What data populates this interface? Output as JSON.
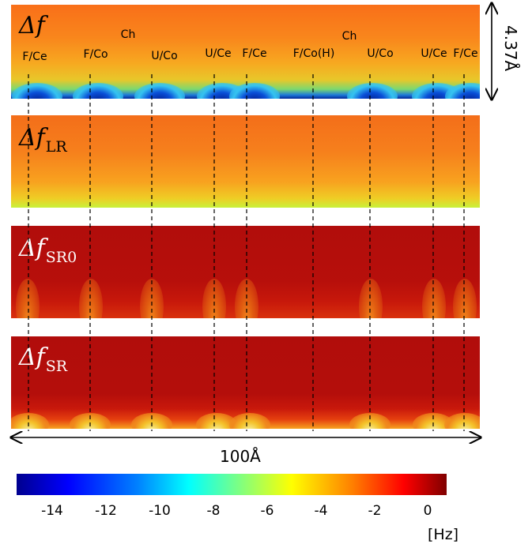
{
  "panels": [
    {
      "id": "df",
      "symbol": "Δf",
      "subscript": ""
    },
    {
      "id": "df_lr",
      "symbol": "Δf",
      "subscript": "LR"
    },
    {
      "id": "df_sr0",
      "symbol": "Δf",
      "subscript": "SR0"
    },
    {
      "id": "df_sr",
      "symbol": "Δf",
      "subscript": "SR"
    }
  ],
  "site_labels": [
    "F/Ce",
    "F/Co",
    "U/Co",
    "U/Ce",
    "F/Ce",
    "F/Co(H)",
    "U/Co",
    "U/Ce",
    "F/Ce"
  ],
  "chain_labels": [
    "Ch",
    "Ch"
  ],
  "scale": {
    "width_label": "100Å",
    "height_label": "4.37Å"
  },
  "colorbar": {
    "ticks": [
      "-14",
      "-12",
      "-10",
      "-8",
      "-6",
      "-4",
      "-2",
      "0"
    ],
    "range": [
      -15.3,
      0.7
    ],
    "unit": "[Hz]",
    "colormap": "jet"
  }
}
